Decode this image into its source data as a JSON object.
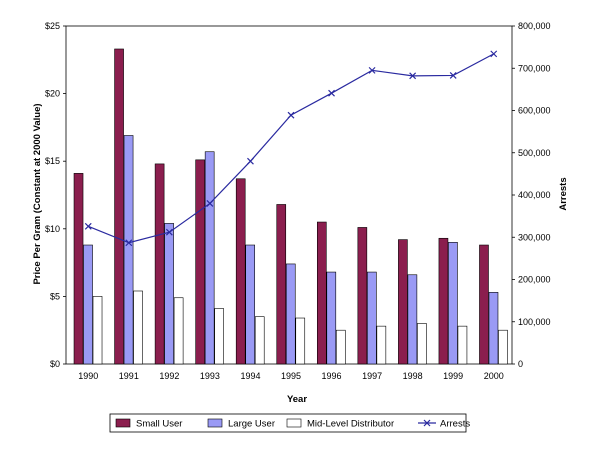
{
  "chart_data": {
    "type": "bar",
    "categories": [
      "1990",
      "1991",
      "1992",
      "1993",
      "1994",
      "1995",
      "1996",
      "1997",
      "1998",
      "1999",
      "2000"
    ],
    "series": [
      {
        "name": "Small User",
        "kind": "bar",
        "axis": "left",
        "color": "#8B1E4E",
        "values": [
          14.1,
          23.3,
          14.8,
          15.1,
          13.7,
          11.8,
          10.5,
          10.1,
          9.2,
          9.3,
          8.8
        ]
      },
      {
        "name": "Large User",
        "kind": "bar",
        "axis": "left",
        "color": "#9A9AF5",
        "values": [
          8.8,
          16.9,
          10.4,
          15.7,
          8.8,
          7.4,
          6.8,
          6.8,
          6.6,
          9.0,
          5.3
        ]
      },
      {
        "name": "Mid-Level Distributor",
        "kind": "bar",
        "axis": "left",
        "color": "#FFFFFF",
        "values": [
          5.0,
          5.4,
          4.9,
          4.1,
          3.5,
          3.4,
          2.5,
          2.8,
          3.0,
          2.8,
          2.5
        ]
      },
      {
        "name": "Arrests",
        "kind": "line",
        "axis": "right",
        "color": "#2A2AA0",
        "values": [
          326000,
          287000,
          312000,
          380000,
          480000,
          589000,
          641000,
          695000,
          682000,
          683000,
          734000
        ]
      }
    ],
    "xlabel": "Year",
    "ylabel": "Price Per Gram (Constant at 2000 Value)",
    "y2label": "Arrests",
    "ylim": [
      0,
      25
    ],
    "y2lim": [
      0,
      800000
    ],
    "yticks": [
      "$0",
      "$5",
      "$10",
      "$15",
      "$20",
      "$25"
    ],
    "y2ticks": [
      "0",
      "100,000",
      "200,000",
      "300,000",
      "400,000",
      "500,000",
      "600,000",
      "700,000",
      "800,000"
    ],
    "grid": false,
    "legend_position": "bottom"
  }
}
